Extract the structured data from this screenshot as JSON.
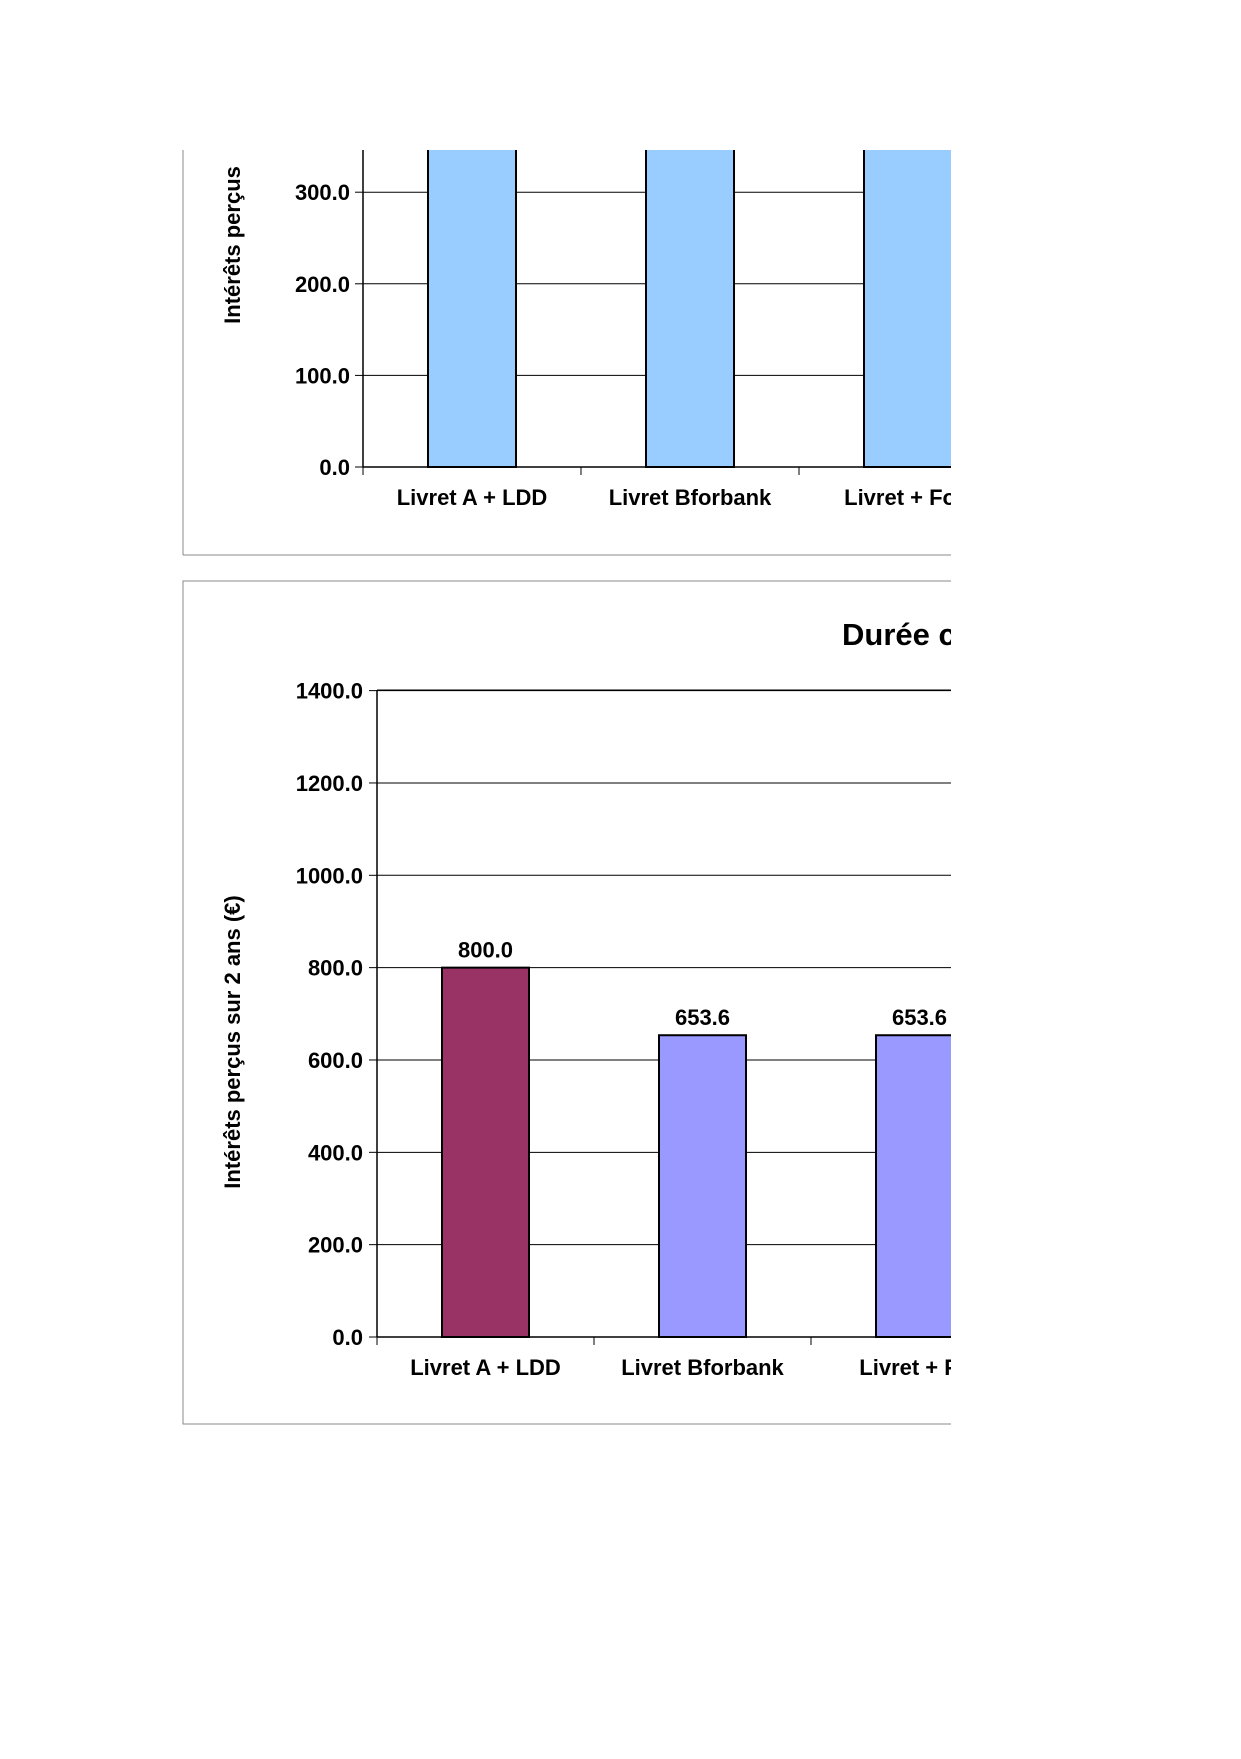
{
  "chart_data": [
    {
      "type": "bar",
      "title": "",
      "ylabel": "Intérêts perçus",
      "xlabel": "",
      "ylim": [
        0,
        350
      ],
      "yticks": [
        "0.0",
        "100.0",
        "200.0",
        "300.0"
      ],
      "categories": [
        "Livret A + LDD",
        "Livret Bforbank",
        "Livret + Fort"
      ],
      "series": [
        {
          "values": [
            350,
            350,
            350
          ],
          "colors": [
            "#99ccff",
            "#99ccff",
            "#99ccff"
          ]
        }
      ],
      "grid": true,
      "cropped": "top and right"
    },
    {
      "type": "bar",
      "title": "Durée c",
      "ylabel": "Intérêts perçus sur 2 ans (€)",
      "xlabel": "",
      "ylim": [
        0,
        1400
      ],
      "yticks": [
        "0.0",
        "200.0",
        "400.0",
        "600.0",
        "800.0",
        "1000.0",
        "1200.0",
        "1400.0"
      ],
      "categories": [
        "Livret A + LDD",
        "Livret Bforbank",
        "Livret + For"
      ],
      "series": [
        {
          "values": [
            800.0,
            653.6,
            653.6
          ],
          "labels": [
            "800.0",
            "653.6",
            "653.6"
          ],
          "colors": [
            "#993366",
            "#9999ff",
            "#9999ff"
          ]
        }
      ],
      "grid": true,
      "cropped": "right"
    }
  ]
}
